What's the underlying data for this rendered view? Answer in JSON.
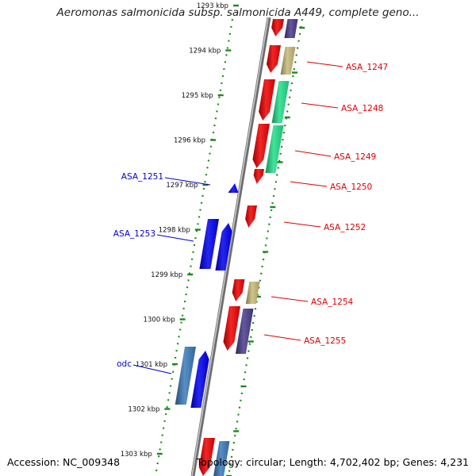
{
  "title": "Aeromonas salmonicida subsp. salmonicida A449, complete geno...",
  "footer": {
    "accession": "Accession: NC_009348",
    "topology": "Topology: circular; Length: 4,702,402 bp; Genes: 4,231"
  },
  "colors": {
    "backbone": "#8c8c8c",
    "tick": "#1a8a1a",
    "dot": "#1a8a1a",
    "label_forward": "#dd0000",
    "label_reverse": "#0000cc",
    "gene_red": "#ee0000",
    "gene_blue": "#0000ee",
    "gene_tan": "#c8b878",
    "gene_purple": "#4a3a8a",
    "gene_teal": "#22dd88",
    "gene_steel": "#3a7ab8"
  },
  "ruler": [
    {
      "label": "1293 kbp"
    },
    {
      "label": "1294 kbp"
    },
    {
      "label": "1295 kbp"
    },
    {
      "label": "1296 kbp"
    },
    {
      "label": "1297 kbp"
    },
    {
      "label": "1298 kbp"
    },
    {
      "label": "1299 kbp"
    },
    {
      "label": "1300 kbp"
    },
    {
      "label": "1301 kbp"
    },
    {
      "label": "1302 kbp"
    },
    {
      "label": "1303 kbp"
    }
  ],
  "gene_labels_forward": [
    {
      "name": "ASA_1247"
    },
    {
      "name": "ASA_1248"
    },
    {
      "name": "ASA_1249"
    },
    {
      "name": "ASA_1250"
    },
    {
      "name": "ASA_1252"
    },
    {
      "name": "ASA_1254"
    },
    {
      "name": "ASA_1255"
    }
  ],
  "gene_labels_reverse": [
    {
      "name": "ASA_1251"
    },
    {
      "name": "ASA_1253"
    },
    {
      "name": "odc"
    }
  ]
}
